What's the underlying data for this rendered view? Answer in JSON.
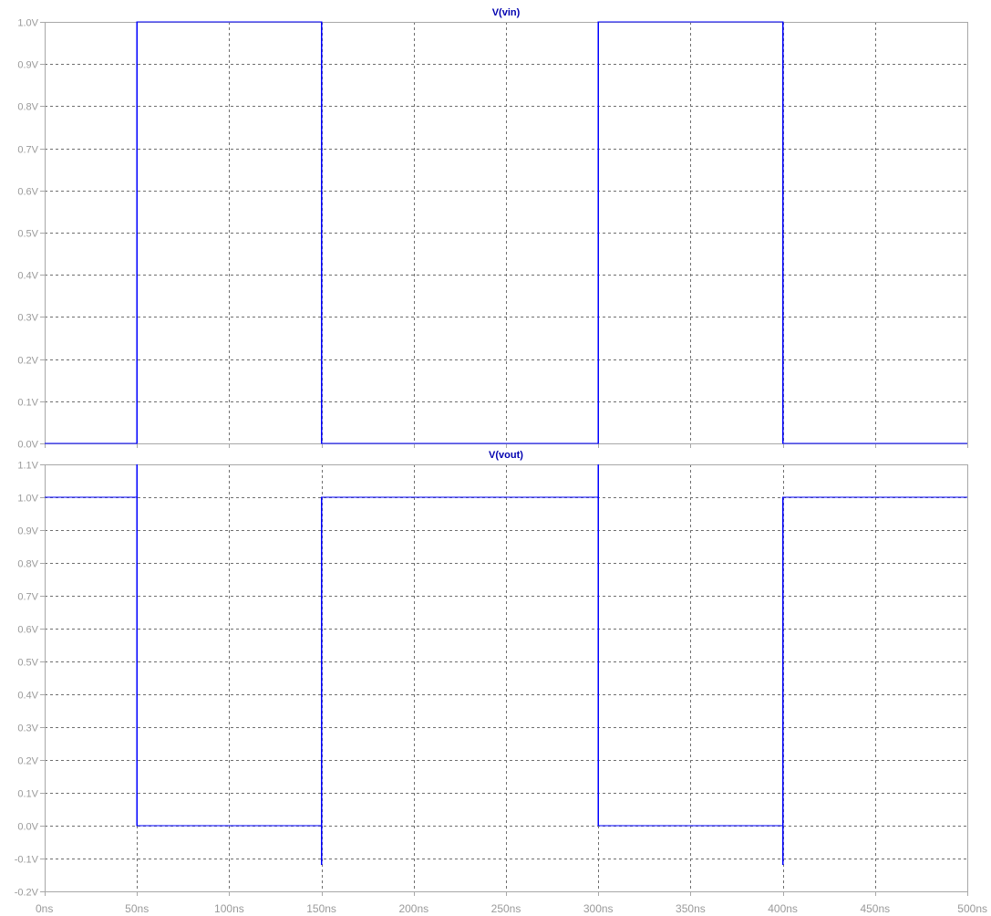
{
  "colors": {
    "trace": "#0000ff",
    "title": "#0000b0",
    "grid": "#6f6f6f",
    "frame": "#a8a8a8",
    "tick_text": "#9a9a9a"
  },
  "chart_data": [
    {
      "type": "line",
      "title": "V(vin)",
      "xlim": [
        0,
        500
      ],
      "ylim": [
        0.0,
        1.0
      ],
      "grid": true,
      "x_ticks": [
        0,
        50,
        100,
        150,
        200,
        250,
        300,
        350,
        400,
        450,
        500
      ],
      "x_tick_labels": [
        "0ns",
        "50ns",
        "100ns",
        "150ns",
        "200ns",
        "250ns",
        "300ns",
        "350ns",
        "400ns",
        "450ns",
        "500ns"
      ],
      "y_ticks": [
        0.0,
        0.1,
        0.2,
        0.3,
        0.4,
        0.5,
        0.6,
        0.7,
        0.8,
        0.9,
        1.0
      ],
      "y_tick_labels": [
        "0.0V",
        "0.1V",
        "0.2V",
        "0.3V",
        "0.4V",
        "0.5V",
        "0.6V",
        "0.7V",
        "0.8V",
        "0.9V",
        "1.0V"
      ],
      "series": [
        {
          "name": "V(vin)",
          "x": [
            0,
            50,
            50,
            150,
            150,
            300,
            300,
            400,
            400,
            500
          ],
          "y": [
            0,
            0,
            1,
            1,
            0,
            0,
            1,
            1,
            0,
            0
          ]
        }
      ]
    },
    {
      "type": "line",
      "title": "V(vout)",
      "xlim": [
        0,
        500
      ],
      "ylim": [
        -0.2,
        1.1
      ],
      "grid": true,
      "x_ticks": [
        0,
        50,
        100,
        150,
        200,
        250,
        300,
        350,
        400,
        450,
        500
      ],
      "x_tick_labels": [
        "0ns",
        "50ns",
        "100ns",
        "150ns",
        "200ns",
        "250ns",
        "300ns",
        "350ns",
        "400ns",
        "450ns",
        "500ns"
      ],
      "y_ticks": [
        -0.2,
        -0.1,
        0.0,
        0.1,
        0.2,
        0.3,
        0.4,
        0.5,
        0.6,
        0.7,
        0.8,
        0.9,
        1.0,
        1.1
      ],
      "y_tick_labels": [
        "-0.2V",
        "-0.1V",
        "0.0V",
        "0.1V",
        "0.2V",
        "0.3V",
        "0.4V",
        "0.5V",
        "0.6V",
        "0.7V",
        "0.8V",
        "0.9V",
        "1.0V",
        "1.1V"
      ],
      "series": [
        {
          "name": "V(vout)",
          "x": [
            0,
            50,
            50,
            50,
            150,
            150,
            150,
            300,
            300,
            300,
            400,
            400,
            400,
            500
          ],
          "y": [
            1.0,
            1.0,
            1.1,
            0.0,
            0.0,
            -0.12,
            1.0,
            1.0,
            1.1,
            0.0,
            0.0,
            -0.12,
            1.0,
            1.0
          ]
        }
      ]
    }
  ]
}
